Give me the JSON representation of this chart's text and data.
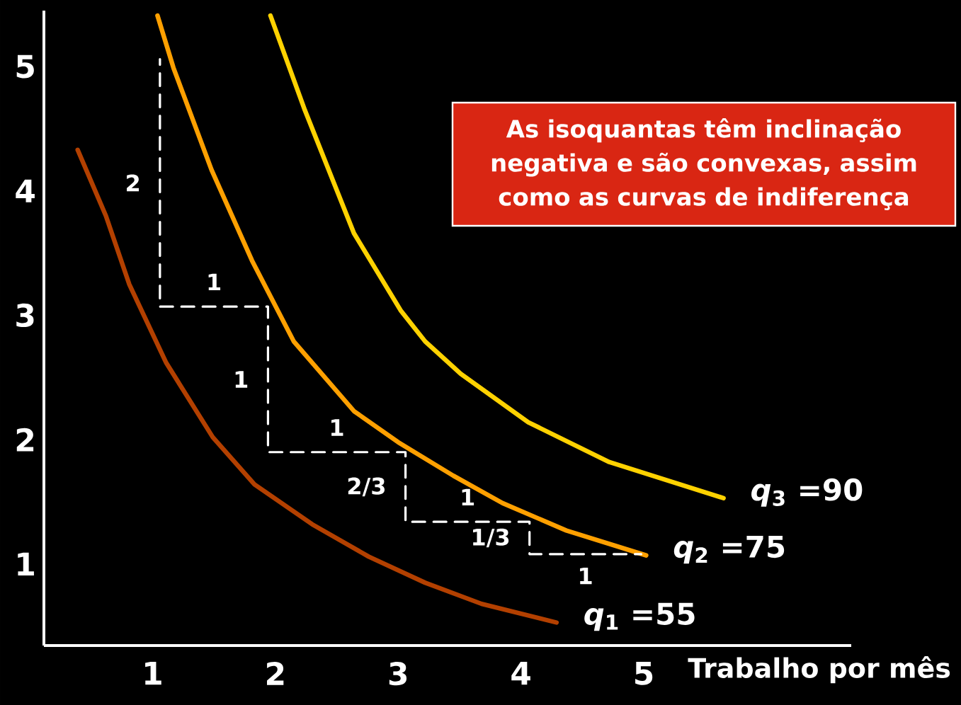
{
  "chart_data": {
    "type": "line",
    "xlabel": "Trabalho por mês",
    "xlim": [
      0.115,
      6.69
    ],
    "ylim": [
      0.345,
      5.45
    ],
    "xticks": [
      1,
      2,
      3,
      4,
      5
    ],
    "yticks": [
      1,
      2,
      3,
      4,
      5
    ],
    "series": [
      {
        "name": "*q*$_{1}$ =55",
        "color": "#b34000",
        "line_style": "solid",
        "x": [
          0.39,
          0.62,
          0.81,
          1.11,
          1.49,
          1.83,
          2.3,
          2.76,
          3.22,
          3.68,
          4.29
        ],
        "values": [
          4.33,
          3.8,
          3.25,
          2.62,
          2.02,
          1.64,
          1.32,
          1.06,
          0.85,
          0.68,
          0.53
        ]
      },
      {
        "name": "*q*$_{2}$ =75",
        "color": "#ffa000",
        "line_style": "solid",
        "x": [
          1.04,
          1.17,
          1.48,
          1.81,
          2.15,
          2.64,
          3.0,
          3.45,
          3.85,
          4.37,
          5.02
        ],
        "values": [
          5.41,
          4.99,
          4.17,
          3.44,
          2.79,
          2.23,
          1.98,
          1.71,
          1.49,
          1.27,
          1.07
        ]
      },
      {
        "name": "*q*$_{3}$ =90",
        "color": "#ffd200",
        "line_style": "solid",
        "x": [
          1.96,
          2.24,
          2.64,
          3.02,
          3.22,
          3.51,
          4.06,
          4.72,
          5.65
        ],
        "values": [
          5.41,
          4.65,
          3.66,
          3.04,
          2.79,
          2.53,
          2.14,
          1.82,
          1.53
        ]
      },
      {
        "color": "#ffffff",
        "line_style": "dashed",
        "x": [
          1.06,
          1.06,
          1.94,
          1.94,
          3.06,
          3.06,
          4.07,
          4.07,
          4.98
        ],
        "values": [
          5.06,
          3.07,
          3.07,
          1.9,
          1.9,
          1.34,
          1.34,
          1.08,
          1.08
        ]
      }
    ],
    "annotations": [
      "As isoquantas têm inclinação negativa e são convexas, assim como as curvas de indiferença",
      "2",
      "1",
      "1",
      "1",
      "2/3",
      "1",
      "1/3",
      "1"
    ]
  }
}
